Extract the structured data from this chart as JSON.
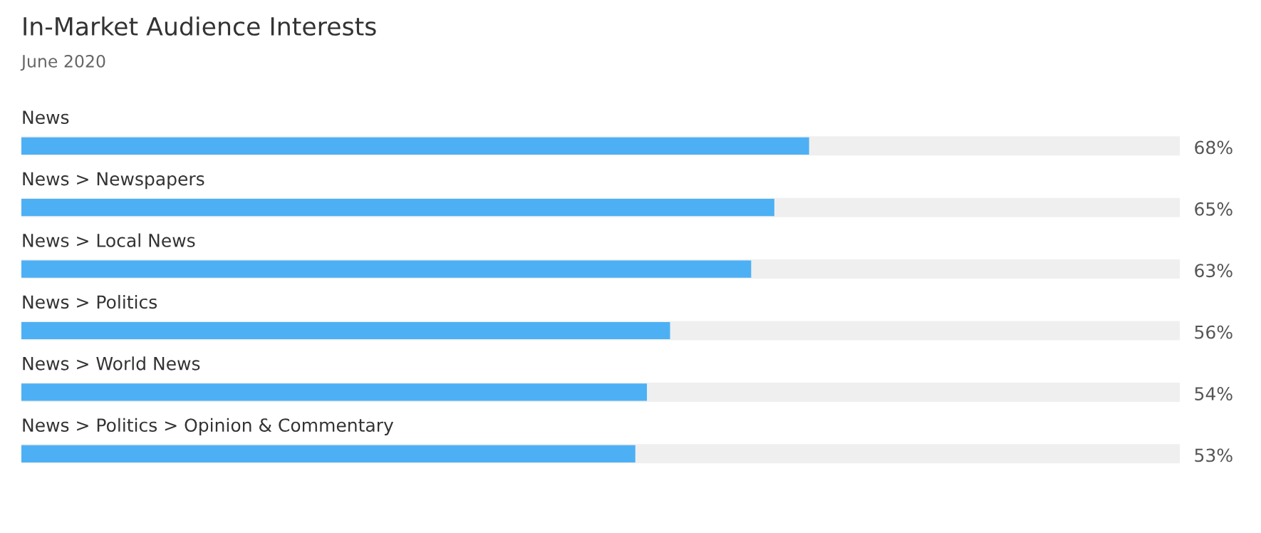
{
  "chart_data": {
    "type": "bar",
    "orientation": "horizontal",
    "title": "In-Market Audience Interests",
    "subtitle": "June 2020",
    "categories": [
      "News",
      "News > Newspapers",
      "News > Local News",
      "News > Politics",
      "News > World News",
      "News > Politics > Opinion & Commentary"
    ],
    "values": [
      68,
      65,
      63,
      56,
      54,
      53
    ],
    "value_labels": [
      "68%",
      "65%",
      "63%",
      "56%",
      "54%",
      "53%"
    ],
    "color": "#4db0f5",
    "xlim": [
      0,
      100
    ]
  }
}
